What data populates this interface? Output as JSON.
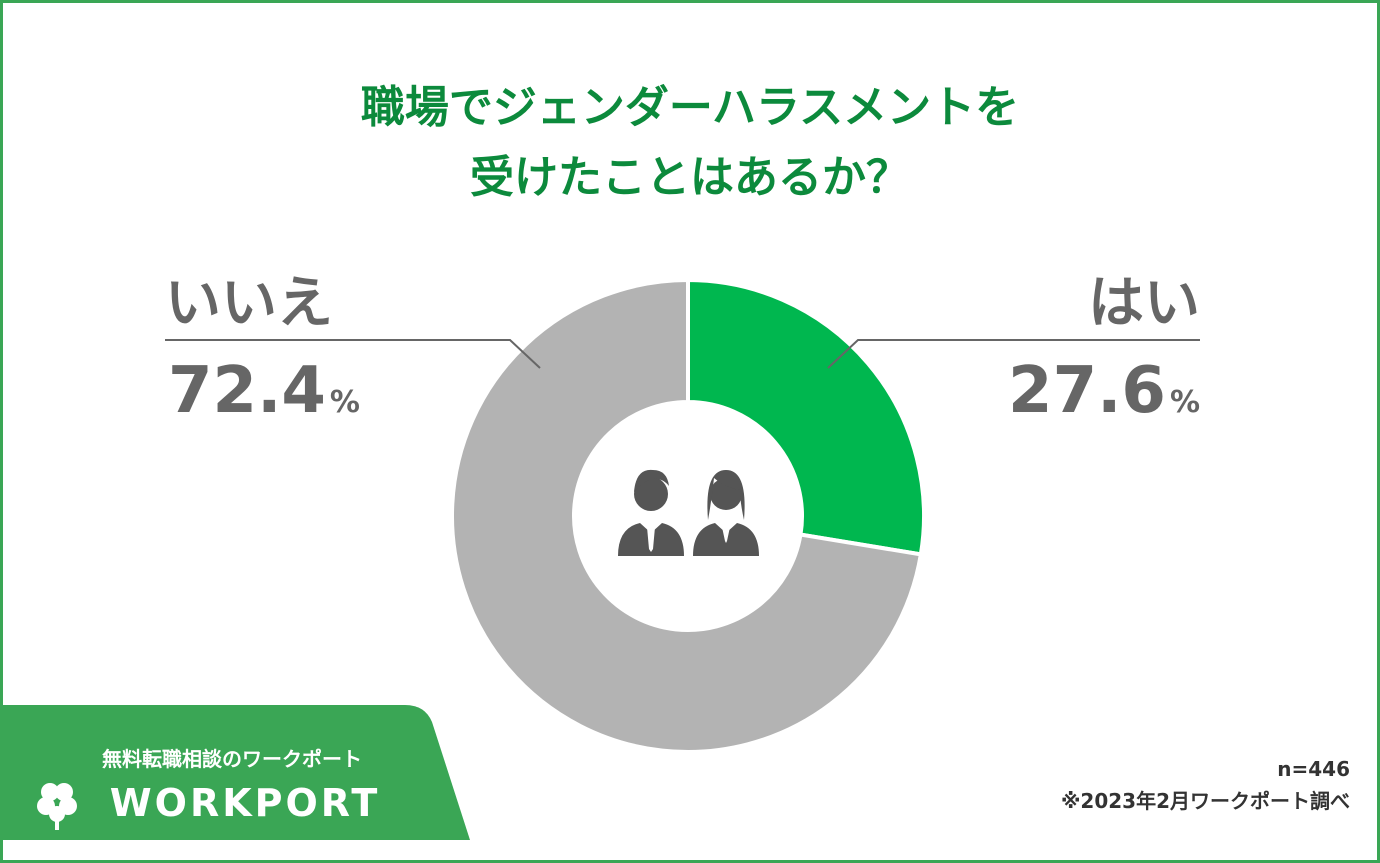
{
  "chart_data": {
    "type": "donut",
    "title": [
      "職場でジェンダーハラスメントを",
      "受けたことはあるか？"
    ],
    "categories": [
      "はい",
      "いいえ"
    ],
    "values": [
      27.6,
      72.4
    ],
    "unit": "%",
    "colors": [
      "#00b74f",
      "#b3b3b3"
    ],
    "sample": "n=446",
    "source": "※2023年2月ワークポート調べ"
  },
  "brand": {
    "tagline": "無料転職相談のワークポート",
    "name": "WORKPORT"
  }
}
